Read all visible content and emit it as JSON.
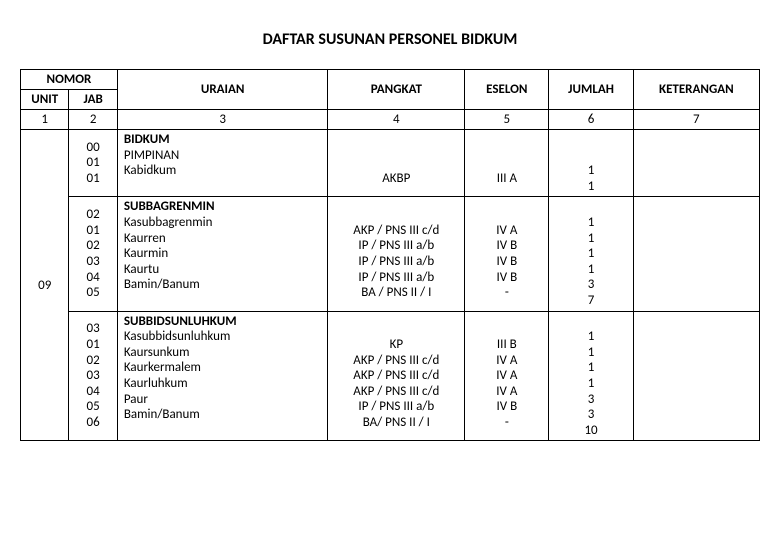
{
  "title": "DAFTAR SUSUNAN PERSONEL BIDKUM",
  "header": {
    "nomor": "NOMOR",
    "unit": "UNIT",
    "jab": "JAB",
    "uraian": "URAIAN",
    "pangkat": "PANGKAT",
    "eselon": "ESELON",
    "jumlah": "JUMLAH",
    "ket": "KETERANGAN"
  },
  "colnums": {
    "c1": "1",
    "c2": "2",
    "c3": "3",
    "c4": "4",
    "c5": "5",
    "c6": "6",
    "c7": "7"
  },
  "unit_code": "09",
  "group1": {
    "jab": [
      "00",
      "01",
      "01"
    ],
    "uraian": [
      "BIDKUM",
      "PIMPINAN",
      "Kabidkum"
    ],
    "pangkat": [
      "",
      "",
      "AKBP"
    ],
    "eselon": [
      "",
      "",
      "III A"
    ],
    "jumlah": [
      "",
      "",
      "1",
      "1"
    ]
  },
  "group2": {
    "jab": [
      "02",
      "01",
      "02",
      "03",
      "04",
      "05"
    ],
    "uraian": [
      "SUBBAGRENMIN",
      "Kasubbagrenmin",
      "Kaurren",
      "Kaurmin",
      "Kaurtu",
      "Bamin/Banum"
    ],
    "pangkat": [
      "",
      "AKP / PNS III c/d",
      "IP / PNS III a/b",
      "IP / PNS III a/b",
      "IP / PNS III a/b",
      "BA / PNS II / I"
    ],
    "eselon": [
      "",
      "IV A",
      "IV B",
      "IV B",
      "IV B",
      "-"
    ],
    "jumlah": [
      "",
      "1",
      "1",
      "1",
      "1",
      "3",
      "7"
    ]
  },
  "group3": {
    "jab": [
      "03",
      "01",
      "02",
      "03",
      "04",
      "05",
      "06"
    ],
    "uraian": [
      "SUBBIDSUNLUHKUM",
      "Kasubbidsunluhkum",
      "Kaursunkum",
      "Kaurkermalem",
      "Kaurluhkum",
      "Paur",
      "Bamin/Banum"
    ],
    "pangkat": [
      "",
      "KP",
      "AKP / PNS III c/d",
      "AKP / PNS III c/d",
      "AKP / PNS III c/d",
      "IP / PNS III a/b",
      "BA/ PNS II / I"
    ],
    "eselon": [
      "",
      "III B",
      "IV A",
      "IV A",
      "IV A",
      "IV B",
      "-"
    ],
    "jumlah": [
      "",
      "1",
      "1",
      "1",
      "1",
      "3",
      "3",
      "10"
    ]
  }
}
